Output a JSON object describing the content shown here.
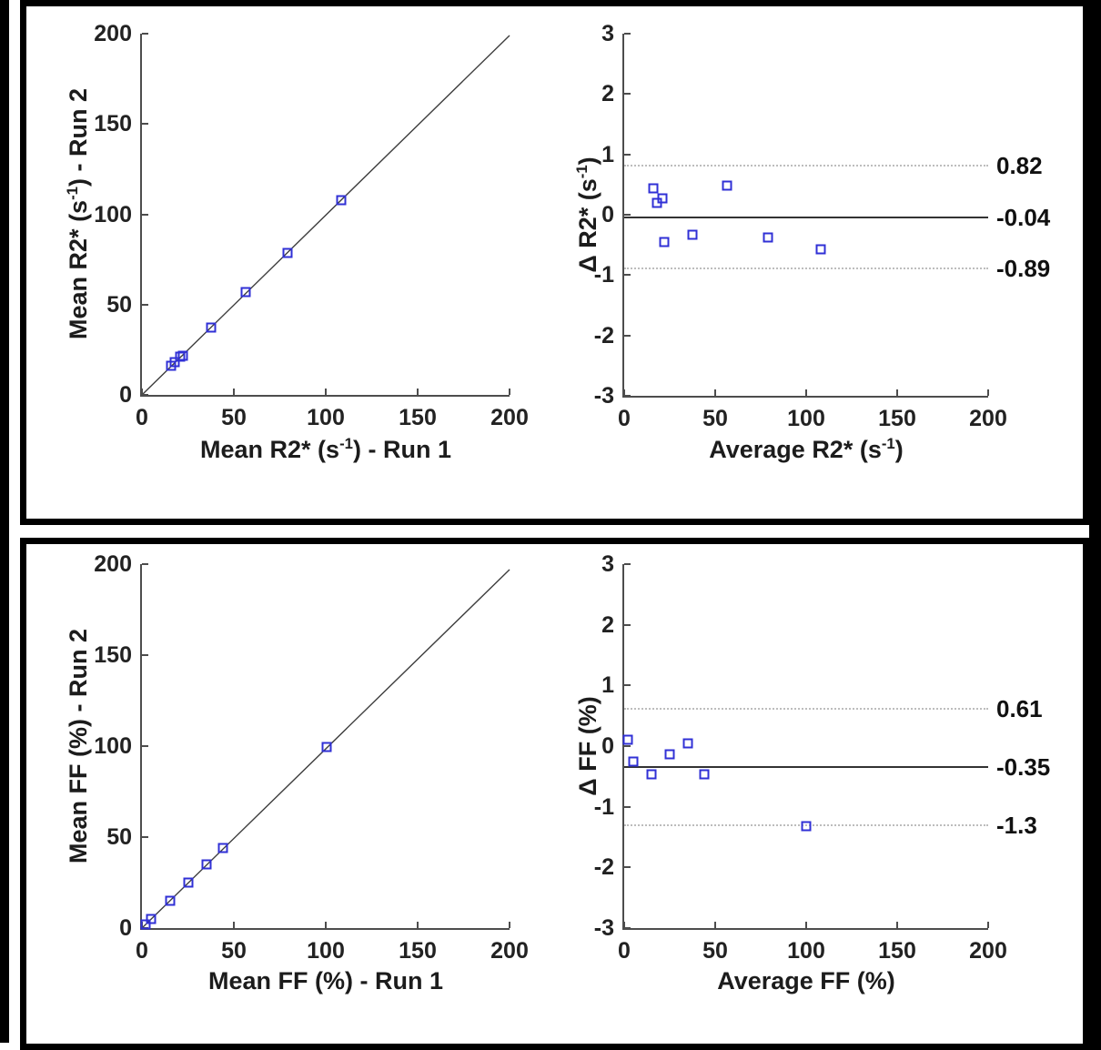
{
  "figure": {
    "background": "#ffffff",
    "frame_color": "#000000",
    "marker_color": "#3030d6",
    "panels": [
      "r2star_repeatability",
      "ff_repeatability"
    ]
  },
  "chart_data": [
    {
      "id": "r2_scatter",
      "type": "scatter",
      "xlabel": {
        "pre": "Mean R2* (s",
        "sup": "-1",
        "post": ") - Run 1"
      },
      "ylabel": {
        "pre": "Mean R2* (s",
        "sup": "-1",
        "post": ") - Run 2"
      },
      "xlim": [
        0,
        200
      ],
      "ylim": [
        0,
        200
      ],
      "xticks": [
        0,
        50,
        100,
        150,
        200
      ],
      "yticks": [
        0,
        50,
        100,
        150,
        200
      ],
      "grid": false,
      "identity_line": {
        "x": [
          0,
          200
        ],
        "y": [
          0,
          199
        ]
      },
      "points": [
        [
          15.8,
          16.2
        ],
        [
          17.9,
          18.1
        ],
        [
          20.9,
          21.1
        ],
        [
          22.2,
          21.8
        ],
        [
          37.7,
          37.3
        ],
        [
          56.3,
          56.7
        ],
        [
          79.2,
          78.8
        ],
        [
          108.3,
          107.7
        ]
      ]
    },
    {
      "id": "r2_bland_altman",
      "type": "scatter",
      "xlabel": {
        "pre": "Average R2* (s",
        "sup": "-1",
        "post": ")"
      },
      "ylabel": {
        "pre": "Δ R2* (s",
        "sup": "-1",
        "post": ")"
      },
      "xlim": [
        0,
        200
      ],
      "ylim": [
        -3,
        3
      ],
      "xticks": [
        0,
        50,
        100,
        150,
        200
      ],
      "yticks": [
        3,
        2,
        1,
        0,
        -1,
        -2,
        -3
      ],
      "grid": false,
      "hlines": [
        {
          "value": 0.82,
          "style": "dotted",
          "label": "0.82"
        },
        {
          "value": -0.04,
          "style": "solid",
          "label": "-0.04"
        },
        {
          "value": -0.89,
          "style": "dotted",
          "label": "-0.89"
        }
      ],
      "points": [
        [
          16,
          0.44
        ],
        [
          18,
          0.2
        ],
        [
          21,
          0.27
        ],
        [
          22,
          -0.45
        ],
        [
          37.5,
          -0.33
        ],
        [
          56.5,
          0.48
        ],
        [
          79,
          -0.37
        ],
        [
          108,
          -0.58
        ]
      ]
    },
    {
      "id": "ff_scatter",
      "type": "scatter",
      "xlabel": {
        "pre": "Mean FF (%) - Run 1",
        "sup": "",
        "post": ""
      },
      "ylabel": {
        "pre": "Mean FF (%) - Run 2",
        "sup": "",
        "post": ""
      },
      "xlim": [
        0,
        200
      ],
      "ylim": [
        0,
        200
      ],
      "xticks": [
        0,
        50,
        100,
        150,
        200
      ],
      "yticks": [
        0,
        50,
        100,
        150,
        200
      ],
      "grid": false,
      "identity_line": {
        "x": [
          0,
          200
        ],
        "y": [
          0,
          197
        ]
      },
      "points": [
        [
          1.9,
          2.0
        ],
        [
          5.1,
          4.9
        ],
        [
          15.2,
          14.8
        ],
        [
          25.1,
          24.9
        ],
        [
          35.0,
          35.0
        ],
        [
          44.2,
          43.8
        ],
        [
          100.7,
          99.3
        ]
      ]
    },
    {
      "id": "ff_bland_altman",
      "type": "scatter",
      "xlabel": {
        "pre": "Average FF (%)",
        "sup": "",
        "post": ""
      },
      "ylabel": {
        "pre": "Δ FF (%)",
        "sup": "",
        "post": ""
      },
      "xlim": [
        0,
        200
      ],
      "ylim": [
        -3,
        3
      ],
      "xticks": [
        0,
        50,
        100,
        150,
        200
      ],
      "yticks": [
        3,
        2,
        1,
        0,
        -1,
        -2,
        -3
      ],
      "grid": false,
      "hlines": [
        {
          "value": 0.61,
          "style": "dotted",
          "label": "0.61"
        },
        {
          "value": -0.35,
          "style": "solid",
          "label": "-0.35"
        },
        {
          "value": -1.3,
          "style": "dotted",
          "label": "-1.3"
        }
      ],
      "points": [
        [
          2,
          0.11
        ],
        [
          5,
          -0.26
        ],
        [
          15,
          -0.46
        ],
        [
          25,
          -0.14
        ],
        [
          35,
          0.04
        ],
        [
          44,
          -0.46
        ],
        [
          100,
          -1.32
        ]
      ]
    }
  ]
}
